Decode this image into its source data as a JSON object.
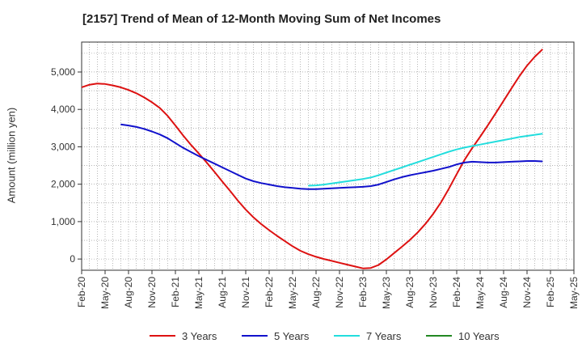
{
  "chart_data": {
    "type": "line",
    "title": "[2157]  Trend of Mean of 12-Month Moving Sum of Net Incomes",
    "xlabel": "",
    "ylabel": "Amount (million yen)",
    "ylim": [
      -300,
      5800
    ],
    "yticks": [
      0,
      1000,
      2000,
      3000,
      4000,
      5000
    ],
    "ytick_labels": [
      "0",
      "1,000",
      "2,000",
      "3,000",
      "4,000",
      "5,000"
    ],
    "xlim": [
      "Feb-20",
      "May-25"
    ],
    "xtick_labels": [
      "Feb-20",
      "May-20",
      "Aug-20",
      "Nov-20",
      "Feb-21",
      "May-21",
      "Aug-21",
      "Nov-21",
      "Feb-22",
      "May-22",
      "Aug-22",
      "Nov-22",
      "Feb-23",
      "May-23",
      "Aug-23",
      "Nov-23",
      "Feb-24",
      "May-24",
      "Aug-24",
      "Nov-24",
      "Feb-25",
      "May-25"
    ],
    "grid": true,
    "legend_position": "bottom",
    "series": [
      {
        "name": "3 Years",
        "color": "#dd1111",
        "points": [
          [
            "Feb-20",
            4590
          ],
          [
            "Mar-20",
            4660
          ],
          [
            "Apr-20",
            4690
          ],
          [
            "May-20",
            4680
          ],
          [
            "Jun-20",
            4640
          ],
          [
            "Jul-20",
            4590
          ],
          [
            "Aug-20",
            4520
          ],
          [
            "Sep-20",
            4430
          ],
          [
            "Oct-20",
            4320
          ],
          [
            "Nov-20",
            4190
          ],
          [
            "Dec-20",
            4040
          ],
          [
            "Jan-21",
            3830
          ],
          [
            "Feb-21",
            3570
          ],
          [
            "Mar-21",
            3300
          ],
          [
            "Apr-21",
            3050
          ],
          [
            "May-21",
            2820
          ],
          [
            "Jun-21",
            2580
          ],
          [
            "Jul-21",
            2330
          ],
          [
            "Aug-21",
            2070
          ],
          [
            "Sep-21",
            1820
          ],
          [
            "Oct-21",
            1560
          ],
          [
            "Nov-21",
            1320
          ],
          [
            "Dec-21",
            1110
          ],
          [
            "Jan-22",
            930
          ],
          [
            "Feb-22",
            770
          ],
          [
            "Mar-22",
            620
          ],
          [
            "Apr-22",
            480
          ],
          [
            "May-22",
            340
          ],
          [
            "Jun-22",
            220
          ],
          [
            "Jul-22",
            130
          ],
          [
            "Aug-22",
            60
          ],
          [
            "Sep-22",
            0
          ],
          [
            "Oct-22",
            -50
          ],
          [
            "Nov-22",
            -100
          ],
          [
            "Dec-22",
            -150
          ],
          [
            "Jan-23",
            -200
          ],
          [
            "Feb-23",
            -250
          ],
          [
            "Mar-23",
            -240
          ],
          [
            "Apr-23",
            -160
          ],
          [
            "May-23",
            -10
          ],
          [
            "Jun-23",
            160
          ],
          [
            "Jul-23",
            330
          ],
          [
            "Aug-23",
            510
          ],
          [
            "Sep-23",
            710
          ],
          [
            "Oct-23",
            940
          ],
          [
            "Nov-23",
            1210
          ],
          [
            "Dec-23",
            1520
          ],
          [
            "Jan-24",
            1880
          ],
          [
            "Feb-24",
            2270
          ],
          [
            "Mar-24",
            2650
          ],
          [
            "Apr-24",
            2970
          ],
          [
            "May-24",
            3270
          ],
          [
            "Jun-24",
            3580
          ],
          [
            "Jul-24",
            3900
          ],
          [
            "Aug-24",
            4230
          ],
          [
            "Sep-24",
            4560
          ],
          [
            "Oct-24",
            4880
          ],
          [
            "Nov-24",
            5170
          ],
          [
            "Dec-24",
            5410
          ],
          [
            "Jan-25",
            5610
          ]
        ]
      },
      {
        "name": "5 Years",
        "color": "#1111cc",
        "points": [
          [
            "Jul-20",
            3600
          ],
          [
            "Aug-20",
            3570
          ],
          [
            "Sep-20",
            3530
          ],
          [
            "Oct-20",
            3480
          ],
          [
            "Nov-20",
            3410
          ],
          [
            "Dec-20",
            3330
          ],
          [
            "Jan-21",
            3230
          ],
          [
            "Feb-21",
            3100
          ],
          [
            "Mar-21",
            2970
          ],
          [
            "Apr-21",
            2860
          ],
          [
            "May-21",
            2750
          ],
          [
            "Jun-21",
            2650
          ],
          [
            "Jul-21",
            2550
          ],
          [
            "Aug-21",
            2450
          ],
          [
            "Sep-21",
            2350
          ],
          [
            "Oct-21",
            2250
          ],
          [
            "Nov-21",
            2150
          ],
          [
            "Dec-21",
            2080
          ],
          [
            "Jan-22",
            2030
          ],
          [
            "Feb-22",
            1990
          ],
          [
            "Mar-22",
            1950
          ],
          [
            "Apr-22",
            1920
          ],
          [
            "May-22",
            1900
          ],
          [
            "Jun-22",
            1880
          ],
          [
            "Jul-22",
            1870
          ],
          [
            "Aug-22",
            1870
          ],
          [
            "Sep-22",
            1880
          ],
          [
            "Oct-22",
            1890
          ],
          [
            "Nov-22",
            1900
          ],
          [
            "Dec-22",
            1910
          ],
          [
            "Jan-23",
            1920
          ],
          [
            "Feb-23",
            1930
          ],
          [
            "Mar-23",
            1950
          ],
          [
            "Apr-23",
            1990
          ],
          [
            "May-23",
            2060
          ],
          [
            "Jun-23",
            2130
          ],
          [
            "Jul-23",
            2190
          ],
          [
            "Aug-23",
            2240
          ],
          [
            "Sep-23",
            2280
          ],
          [
            "Oct-23",
            2320
          ],
          [
            "Nov-23",
            2360
          ],
          [
            "Dec-23",
            2410
          ],
          [
            "Jan-24",
            2460
          ],
          [
            "Feb-24",
            2530
          ],
          [
            "Mar-24",
            2580
          ],
          [
            "Apr-24",
            2600
          ],
          [
            "May-24",
            2590
          ],
          [
            "Jun-24",
            2580
          ],
          [
            "Jul-24",
            2580
          ],
          [
            "Aug-24",
            2590
          ],
          [
            "Sep-24",
            2600
          ],
          [
            "Oct-24",
            2610
          ],
          [
            "Nov-24",
            2620
          ],
          [
            "Dec-24",
            2620
          ],
          [
            "Jan-25",
            2610
          ]
        ]
      },
      {
        "name": "7 Years",
        "color": "#22dddd",
        "points": [
          [
            "Jul-22",
            1960
          ],
          [
            "Aug-22",
            1970
          ],
          [
            "Sep-22",
            1990
          ],
          [
            "Oct-22",
            2020
          ],
          [
            "Nov-22",
            2050
          ],
          [
            "Dec-22",
            2080
          ],
          [
            "Jan-23",
            2110
          ],
          [
            "Feb-23",
            2140
          ],
          [
            "Mar-23",
            2180
          ],
          [
            "Apr-23",
            2240
          ],
          [
            "May-23",
            2310
          ],
          [
            "Jun-23",
            2380
          ],
          [
            "Jul-23",
            2450
          ],
          [
            "Aug-23",
            2520
          ],
          [
            "Sep-23",
            2590
          ],
          [
            "Oct-23",
            2660
          ],
          [
            "Nov-23",
            2730
          ],
          [
            "Dec-23",
            2800
          ],
          [
            "Jan-24",
            2870
          ],
          [
            "Feb-24",
            2930
          ],
          [
            "Mar-24",
            2980
          ],
          [
            "Apr-24",
            3020
          ],
          [
            "May-24",
            3060
          ],
          [
            "Jun-24",
            3100
          ],
          [
            "Jul-24",
            3140
          ],
          [
            "Aug-24",
            3180
          ],
          [
            "Sep-24",
            3220
          ],
          [
            "Oct-24",
            3260
          ],
          [
            "Nov-24",
            3290
          ],
          [
            "Dec-24",
            3320
          ],
          [
            "Jan-25",
            3350
          ]
        ]
      },
      {
        "name": "10 Years",
        "color": "#228822",
        "points": []
      }
    ]
  }
}
